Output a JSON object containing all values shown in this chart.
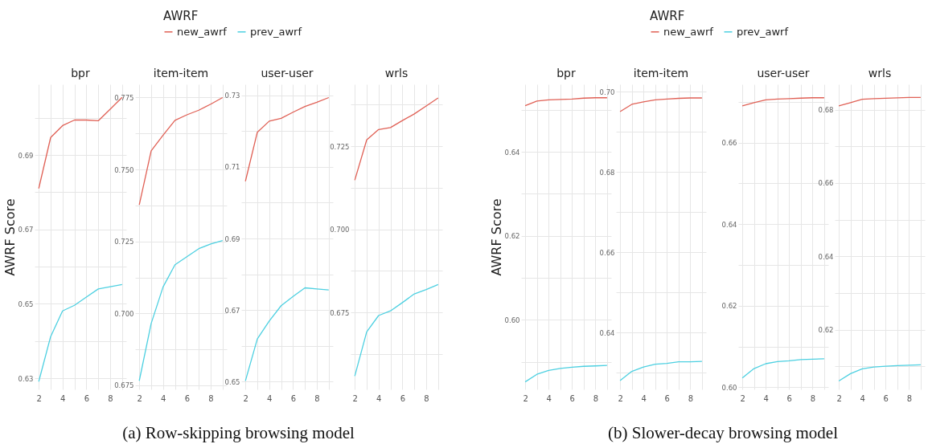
{
  "chart_data": [
    {
      "type": "line",
      "title": "bpr",
      "ylabel": "AWRF Score",
      "legend_title": "AWRF",
      "legend": "top",
      "grid": true,
      "annotations": [
        "(a) Row-skipping browsing model"
      ],
      "x": [
        2,
        3,
        4,
        5,
        6,
        7,
        8,
        9
      ],
      "xlim": [
        1.65,
        9.35
      ],
      "xticks": [
        2,
        {
          "value": 3,
          "label": null
        },
        4,
        {
          "value": 5,
          "label": null
        },
        6,
        {
          "value": 7,
          "label": null
        },
        8,
        {
          "value": 9,
          "label": null
        }
      ],
      "ylim": [
        0.627,
        0.709
      ],
      "yticks": [
        0.63,
        {
          "value": 0.64,
          "label": null
        },
        0.65,
        {
          "value": 0.66,
          "label": null
        },
        0.67,
        {
          "value": 0.68,
          "label": null
        },
        0.69,
        {
          "value": 0.7,
          "label": null
        }
      ],
      "series": [
        {
          "name": "new_awrf",
          "color": "#e06055",
          "values": [
            0.681,
            0.6947,
            0.6979,
            0.6994,
            0.6994,
            0.6992,
            0.7023,
            0.7055
          ]
        },
        {
          "name": "prev_awrf",
          "color": "#4dd0e1",
          "values": [
            0.6291,
            0.6412,
            0.6481,
            0.6496,
            0.6518,
            0.654,
            0.6546,
            0.6552
          ]
        }
      ]
    },
    {
      "type": "line",
      "title": "item-item",
      "grid": true,
      "x": [
        2,
        3,
        4,
        5,
        6,
        7,
        8,
        9
      ],
      "xlim": [
        1.65,
        9.35
      ],
      "xticks": [
        2,
        {
          "value": 3,
          "label": null
        },
        4,
        {
          "value": 5,
          "label": null
        },
        6,
        {
          "value": 7,
          "label": null
        },
        8,
        {
          "value": 9,
          "label": null
        }
      ],
      "ylim": [
        0.6736,
        0.7796
      ],
      "yticks": [
        0.675,
        {
          "value": 0.6875,
          "label": null
        },
        {
          "value": 0.7,
          "label": "0.700"
        },
        {
          "value": 0.7125,
          "label": null
        },
        0.725,
        {
          "value": 0.7375,
          "label": null
        },
        {
          "value": 0.75,
          "label": "0.750"
        },
        {
          "value": 0.7625,
          "label": null
        },
        0.775
      ],
      "series": [
        {
          "color": "#e06055",
          "values": [
            0.7377,
            0.7565,
            0.7619,
            0.7671,
            0.769,
            0.7706,
            0.7727,
            0.775
          ]
        },
        {
          "color": "#4dd0e1",
          "values": [
            0.6766,
            0.6965,
            0.7092,
            0.7169,
            0.7197,
            0.7225,
            0.7241,
            0.7253
          ]
        }
      ]
    },
    {
      "type": "line",
      "title": "user-user",
      "grid": true,
      "x": [
        2,
        3,
        4,
        5,
        6,
        7,
        8,
        9
      ],
      "xlim": [
        1.65,
        9.35
      ],
      "xticks": [
        2,
        {
          "value": 3,
          "label": null
        },
        4,
        {
          "value": 5,
          "label": null
        },
        6,
        {
          "value": 7,
          "label": null
        },
        8,
        {
          "value": 9,
          "label": null
        }
      ],
      "ylim": [
        0.6478,
        0.7331
      ],
      "yticks": [
        0.65,
        {
          "value": 0.66,
          "label": null
        },
        0.67,
        {
          "value": 0.68,
          "label": null
        },
        0.69,
        {
          "value": 0.7,
          "label": null
        },
        0.71,
        {
          "value": 0.72,
          "label": null
        },
        0.73
      ],
      "series": [
        {
          "color": "#e06055",
          "values": [
            0.706,
            0.7197,
            0.7228,
            0.7236,
            0.7253,
            0.7269,
            0.7281,
            0.7294
          ]
        },
        {
          "color": "#4dd0e1",
          "values": [
            0.6502,
            0.6619,
            0.6669,
            0.6712,
            0.6738,
            0.6762,
            0.6759,
            0.6756
          ]
        }
      ]
    },
    {
      "type": "line",
      "title": "wrls",
      "grid": true,
      "x": [
        2,
        3,
        4,
        5,
        6,
        7,
        8,
        9
      ],
      "xlim": [
        1.65,
        9.35
      ],
      "xticks": [
        2,
        {
          "value": 3,
          "label": null
        },
        4,
        {
          "value": 5,
          "label": null
        },
        6,
        {
          "value": 7,
          "label": null
        },
        8,
        {
          "value": 9,
          "label": null
        }
      ],
      "ylim": [
        0.6519,
        0.7436
      ],
      "yticks": [
        {
          "value": 0.6625,
          "label": null
        },
        0.675,
        {
          "value": 0.6875,
          "label": null
        },
        {
          "value": 0.7,
          "label": "0.700"
        },
        {
          "value": 0.7125,
          "label": null
        },
        0.725,
        {
          "value": 0.7375,
          "label": null
        }
      ],
      "series": [
        {
          "color": "#e06055",
          "values": [
            0.7148,
            0.7269,
            0.73,
            0.7306,
            0.7327,
            0.7347,
            0.7371,
            0.7395
          ]
        },
        {
          "color": "#4dd0e1",
          "values": [
            0.6559,
            0.6692,
            0.6741,
            0.6755,
            0.678,
            0.6806,
            0.6819,
            0.6834
          ]
        }
      ]
    },
    {
      "type": "line",
      "title": "bpr",
      "ylabel": "AWRF Score",
      "legend_title": "AWRF",
      "legend": "top",
      "grid": true,
      "annotations": [
        "(b) Slower-decay browsing model"
      ],
      "x": [
        2,
        3,
        4,
        5,
        6,
        7,
        8,
        9
      ],
      "xlim": [
        1.65,
        9.35
      ],
      "xticks": [
        2,
        {
          "value": 3,
          "label": null
        },
        4,
        {
          "value": 5,
          "label": null
        },
        6,
        {
          "value": 7,
          "label": null
        },
        8,
        {
          "value": 9,
          "label": null
        }
      ],
      "ylim": [
        0.5834,
        0.6561
      ],
      "yticks": [
        {
          "value": 0.59,
          "label": null
        },
        {
          "value": 0.6,
          "label": "0.60"
        },
        {
          "value": 0.61,
          "label": null
        },
        0.62,
        {
          "value": 0.63,
          "label": null
        },
        0.64,
        {
          "value": 0.65,
          "label": null
        }
      ],
      "series": [
        {
          "name": "new_awrf",
          "color": "#e06055",
          "values": [
            0.651,
            0.6521,
            0.6524,
            0.6525,
            0.6526,
            0.6528,
            0.6529,
            0.6529
          ]
        },
        {
          "name": "prev_awrf",
          "color": "#4dd0e1",
          "values": [
            0.5852,
            0.587,
            0.5879,
            0.5884,
            0.5887,
            0.5889,
            0.589,
            0.5891
          ]
        }
      ]
    },
    {
      "type": "line",
      "title": "item-item",
      "grid": true,
      "x": [
        2,
        3,
        4,
        5,
        6,
        7,
        8,
        9
      ],
      "xlim": [
        1.65,
        9.35
      ],
      "xticks": [
        2,
        {
          "value": 3,
          "label": null
        },
        4,
        {
          "value": 5,
          "label": null
        },
        6,
        {
          "value": 7,
          "label": null
        },
        8,
        {
          "value": 9,
          "label": null
        }
      ],
      "ylim": [
        0.6258,
        0.7019
      ],
      "yticks": [
        {
          "value": 0.63,
          "label": null
        },
        0.64,
        {
          "value": 0.65,
          "label": null
        },
        0.66,
        {
          "value": 0.67,
          "label": null
        },
        0.68,
        {
          "value": 0.69,
          "label": null
        },
        {
          "value": 0.7,
          "label": "0.70"
        }
      ],
      "series": [
        {
          "color": "#e06055",
          "values": [
            0.6951,
            0.6969,
            0.6975,
            0.698,
            0.6982,
            0.6984,
            0.6985,
            0.6985
          ]
        },
        {
          "color": "#4dd0e1",
          "values": [
            0.628,
            0.6303,
            0.6314,
            0.6321,
            0.6323,
            0.6327,
            0.6327,
            0.6328
          ]
        }
      ]
    },
    {
      "type": "line",
      "title": "user-user",
      "grid": true,
      "x": [
        2,
        3,
        4,
        5,
        6,
        7,
        8,
        9
      ],
      "xlim": [
        1.65,
        9.35
      ],
      "xticks": [
        2,
        {
          "value": 3,
          "label": null
        },
        4,
        {
          "value": 5,
          "label": null
        },
        6,
        {
          "value": 7,
          "label": null
        },
        8,
        {
          "value": 9,
          "label": null
        }
      ],
      "ylim": [
        0.5995,
        0.6743
      ],
      "yticks": [
        {
          "value": 0.6,
          "label": "0.60"
        },
        {
          "value": 0.61,
          "label": null
        },
        0.62,
        {
          "value": 0.63,
          "label": null
        },
        0.64,
        {
          "value": 0.65,
          "label": null
        },
        0.66,
        {
          "value": 0.67,
          "label": null
        }
      ],
      "series": [
        {
          "color": "#e06055",
          "values": [
            0.669,
            0.6698,
            0.6705,
            0.6707,
            0.6708,
            0.6709,
            0.671,
            0.671
          ]
        },
        {
          "color": "#4dd0e1",
          "values": [
            0.6023,
            0.6046,
            0.6058,
            0.6063,
            0.6065,
            0.6068,
            0.6069,
            0.607
          ]
        }
      ]
    },
    {
      "type": "line",
      "title": "wrls",
      "grid": true,
      "x": [
        2,
        3,
        4,
        5,
        6,
        7,
        8,
        9
      ],
      "xlim": [
        1.65,
        9.35
      ],
      "xticks": [
        2,
        {
          "value": 3,
          "label": null
        },
        4,
        {
          "value": 5,
          "label": null
        },
        6,
        {
          "value": 7,
          "label": null
        },
        8,
        {
          "value": 9,
          "label": null
        }
      ],
      "ylim": [
        0.6037,
        0.6869
      ],
      "yticks": [
        {
          "value": 0.61,
          "label": null
        },
        0.62,
        {
          "value": 0.63,
          "label": null
        },
        0.64,
        {
          "value": 0.65,
          "label": null
        },
        0.66,
        {
          "value": 0.67,
          "label": null
        },
        0.68
      ],
      "series": [
        {
          "color": "#e06055",
          "values": [
            0.681,
            0.6819,
            0.6828,
            0.683,
            0.6831,
            0.6832,
            0.6833,
            0.6833
          ]
        },
        {
          "color": "#4dd0e1",
          "values": [
            0.606,
            0.608,
            0.6093,
            0.6098,
            0.61,
            0.6102,
            0.6103,
            0.6104
          ]
        }
      ]
    }
  ]
}
